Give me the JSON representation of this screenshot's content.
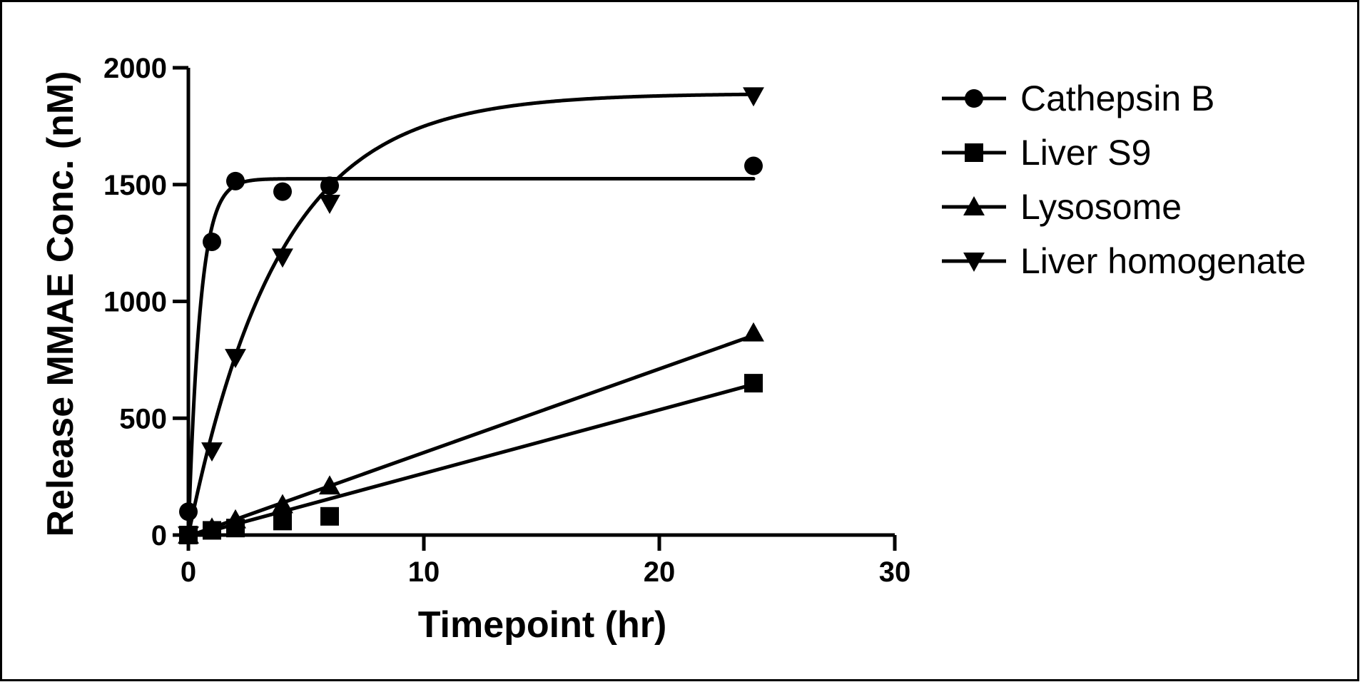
{
  "chart_data": {
    "type": "scatter",
    "xlabel": "Timepoint (hr)",
    "ylabel": "Release MMAE Conc. (nM)",
    "xlim": [
      0,
      30
    ],
    "ylim": [
      0,
      2000
    ],
    "xticks": [
      0,
      10,
      20,
      30
    ],
    "yticks": [
      0,
      500,
      1000,
      1500,
      2000
    ],
    "grid": false,
    "legend_position": "right",
    "series": [
      {
        "name": "Cathepsin B",
        "marker": "circle",
        "color": "#000000",
        "x": [
          0,
          1,
          2,
          4,
          6,
          24
        ],
        "y": [
          100,
          1255,
          1515,
          1470,
          1495,
          1580
        ],
        "fit": {
          "model": "one-phase association",
          "plateau": 1525,
          "k": 2.0
        }
      },
      {
        "name": "Liver S9",
        "marker": "square",
        "color": "#000000",
        "x": [
          0,
          1,
          2,
          4,
          6,
          24
        ],
        "y": [
          0,
          20,
          30,
          60,
          80,
          650
        ],
        "fit": {
          "model": "linear",
          "slope": 27.2,
          "intercept": -8
        }
      },
      {
        "name": "Lysosome",
        "marker": "triangle-up",
        "color": "#000000",
        "x": [
          0,
          1,
          2,
          4,
          6,
          24
        ],
        "y": [
          0,
          30,
          65,
          130,
          210,
          865
        ],
        "fit": {
          "model": "linear",
          "slope": 35.8,
          "intercept": -5
        }
      },
      {
        "name": "Liver homogenate",
        "marker": "triangle-down",
        "color": "#000000",
        "x": [
          0,
          1,
          2,
          4,
          6,
          24
        ],
        "y": [
          0,
          360,
          760,
          1190,
          1420,
          1880
        ],
        "fit": {
          "model": "one-phase association",
          "plateau": 1890,
          "k": 0.26
        }
      }
    ]
  }
}
